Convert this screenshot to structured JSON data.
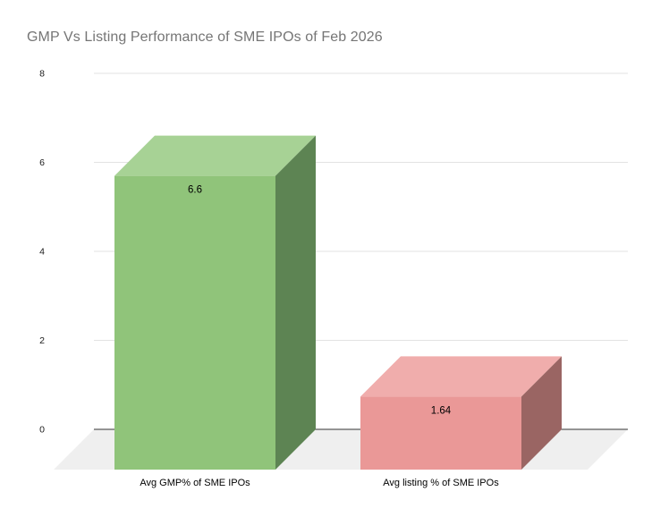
{
  "header": {
    "title": "GMP Vs Listing Performance of SME IPOs of Feb 2026"
  },
  "chart_data": {
    "type": "bar",
    "style": "3d-column",
    "title": "GMP Vs Listing Performance of SME IPOs of Feb 2026",
    "categories": [
      "Avg GMP% of SME IPOs",
      "Avg listing % of SME IPOs"
    ],
    "values": [
      6.6,
      1.64
    ],
    "value_labels": [
      "6.6",
      "1.64"
    ],
    "series": [
      {
        "name": "Avg GMP% of SME IPOs",
        "value": 6.6
      },
      {
        "name": "Avg listing % of SME IPOs",
        "value": 1.64
      }
    ],
    "xlabel": "",
    "ylabel": "",
    "y_ticks": [
      0,
      2,
      4,
      6,
      8
    ],
    "ylim": [
      0,
      8
    ],
    "grid": true,
    "legend_position": "none",
    "colors": {
      "background": "#ffffff",
      "title_text": "#757575",
      "tick_text": "#1a1a1a",
      "label_text": "#000000",
      "gridline": "#e3e3e3",
      "axis_line": "#333333",
      "floor": "#efefef",
      "bar_faces": [
        {
          "front": "#90c47a",
          "top": "#a7d295",
          "side": "#5d8453"
        },
        {
          "front": "#ea9897",
          "top": "#f0adac",
          "side": "#9a6563"
        }
      ]
    }
  }
}
